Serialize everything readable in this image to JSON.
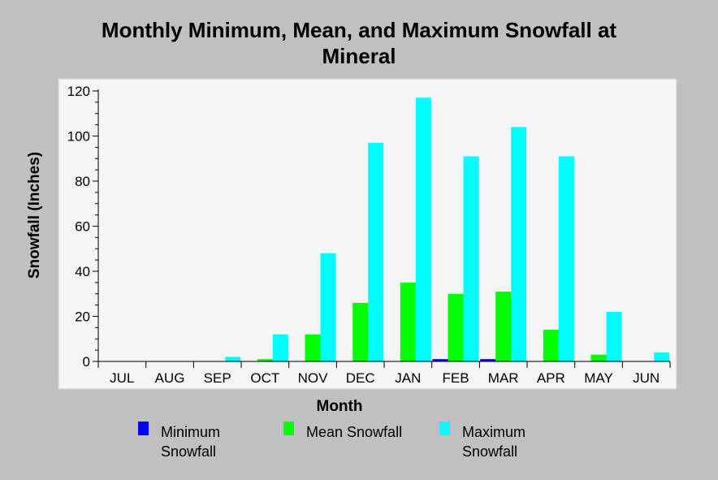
{
  "chart_data": {
    "type": "bar",
    "title": [
      "Monthly Minimum, Mean, and Maximum Snowfall at",
      "Mineral"
    ],
    "xlabel": "Month",
    "ylabel": "Snowfall (Inches)",
    "ylim": [
      0,
      120
    ],
    "yticks": [
      0,
      20,
      40,
      60,
      80,
      100,
      120
    ],
    "categories": [
      "JUL",
      "AUG",
      "SEP",
      "OCT",
      "NOV",
      "DEC",
      "JAN",
      "FEB",
      "MAR",
      "APR",
      "MAY",
      "JUN"
    ],
    "series": [
      {
        "name": [
          "Minimum",
          "Snowfall"
        ],
        "color": "#0000ff",
        "values": [
          0,
          0,
          0,
          0,
          0,
          0,
          0,
          1,
          1,
          0,
          0,
          0
        ]
      },
      {
        "name": [
          "Mean Snowfall"
        ],
        "color": "#00ff00",
        "values": [
          0,
          0,
          0,
          1,
          12,
          26,
          35,
          30,
          31,
          14,
          3,
          0
        ]
      },
      {
        "name": [
          "Maximum",
          "Snowfall"
        ],
        "color": "#00ffff",
        "values": [
          0,
          0,
          2,
          12,
          48,
          97,
          117,
          91,
          104,
          91,
          22,
          4
        ]
      }
    ],
    "grid": false,
    "legend_position": "bottom"
  }
}
